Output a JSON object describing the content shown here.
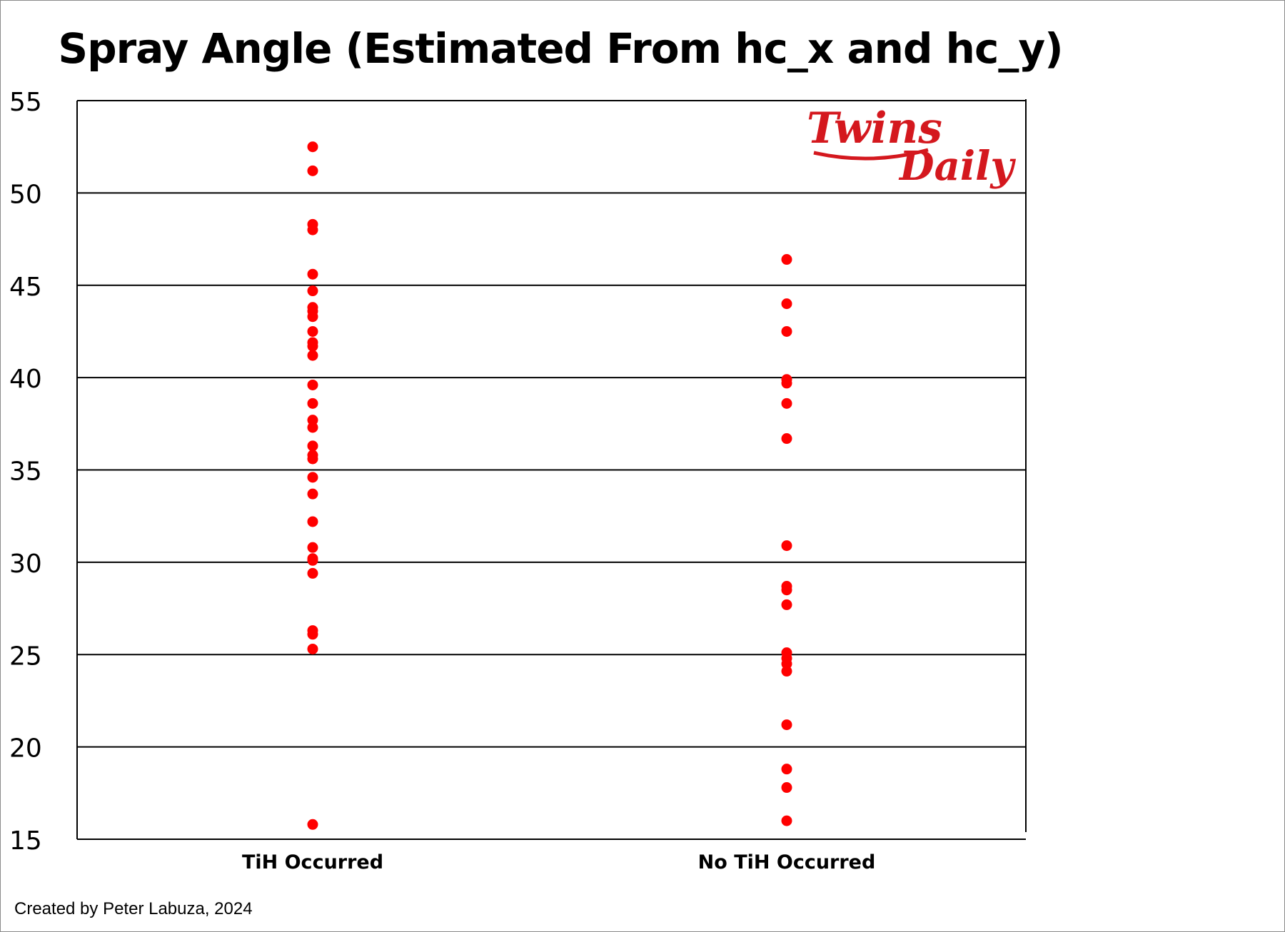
{
  "title": "Spray Angle (Estimated From hc_x and hc_y)",
  "credit": "Created by Peter Labuza, 2024",
  "logo": {
    "line1": "Twins",
    "line2": "Daily",
    "color": "#d4181e"
  },
  "colors": {
    "points": "#ff0000",
    "axis": "#000000",
    "grid": "#000000"
  },
  "chart_data": {
    "type": "scatter",
    "title": "Spray Angle (Estimated From hc_x and hc_y)",
    "xlabel": "",
    "ylabel": "",
    "ylim": [
      15,
      55
    ],
    "yticks": [
      15,
      20,
      25,
      30,
      35,
      40,
      45,
      50,
      55
    ],
    "grid": true,
    "categories": [
      "TiH Occurred",
      "No TiH Occurred"
    ],
    "series": [
      {
        "category": "TiH Occurred",
        "values": [
          52.5,
          51.2,
          48.3,
          48.0,
          45.6,
          44.7,
          43.8,
          43.6,
          43.3,
          42.5,
          41.9,
          41.7,
          41.2,
          39.6,
          38.6,
          37.7,
          37.3,
          36.3,
          35.8,
          35.6,
          34.6,
          33.7,
          32.2,
          30.8,
          30.2,
          30.1,
          29.4,
          26.3,
          26.1,
          25.3,
          15.8
        ]
      },
      {
        "category": "No TiH Occurred",
        "values": [
          46.4,
          44.0,
          42.5,
          39.9,
          39.7,
          38.6,
          36.7,
          30.9,
          28.7,
          28.5,
          27.7,
          25.1,
          24.8,
          24.5,
          24.1,
          21.2,
          18.8,
          17.8,
          16.0
        ]
      }
    ]
  }
}
